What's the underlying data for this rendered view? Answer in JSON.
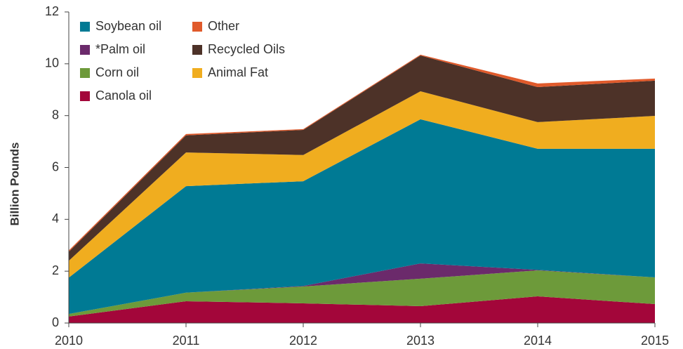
{
  "chart_data": {
    "type": "stacked_area",
    "ylabel": "Billion Pounds",
    "x": [
      2010,
      2011,
      2012,
      2013,
      2014,
      2015
    ],
    "xlim": [
      2010,
      2015
    ],
    "xticks": [
      2010,
      2011,
      2012,
      2013,
      2014,
      2015
    ],
    "ylim": [
      0,
      12
    ],
    "yticks": [
      0,
      2,
      4,
      6,
      8,
      10,
      12
    ],
    "grid": false,
    "legend": "top-left",
    "series": [
      {
        "name": "Canola oil",
        "color": "#a3063a",
        "values": [
          0.25,
          0.84,
          0.76,
          0.65,
          1.03,
          0.73
        ]
      },
      {
        "name": "Corn oil",
        "color": "#6d9a3a",
        "values": [
          0.1,
          0.33,
          0.65,
          1.06,
          1.0,
          1.03
        ]
      },
      {
        "name": "*Palm oil",
        "color": "#6b2a6b",
        "values": [
          0,
          0,
          0.02,
          0.59,
          0.02,
          0
        ]
      },
      {
        "name": "Soybean oil",
        "color": "#007a94",
        "values": [
          1.4,
          4.11,
          4.04,
          5.56,
          4.67,
          4.96
        ]
      },
      {
        "name": "Animal Fat",
        "color": "#f0ad1f",
        "values": [
          0.65,
          1.3,
          1.01,
          1.08,
          1.03,
          1.27
        ]
      },
      {
        "name": "Recycled Oils",
        "color": "#4d3228",
        "values": [
          0.35,
          0.66,
          0.97,
          1.38,
          1.35,
          1.36
        ]
      },
      {
        "name": "Other",
        "color": "#e05a2b",
        "values": [
          0.05,
          0.05,
          0.03,
          0.03,
          0.14,
          0.08
        ]
      }
    ]
  }
}
